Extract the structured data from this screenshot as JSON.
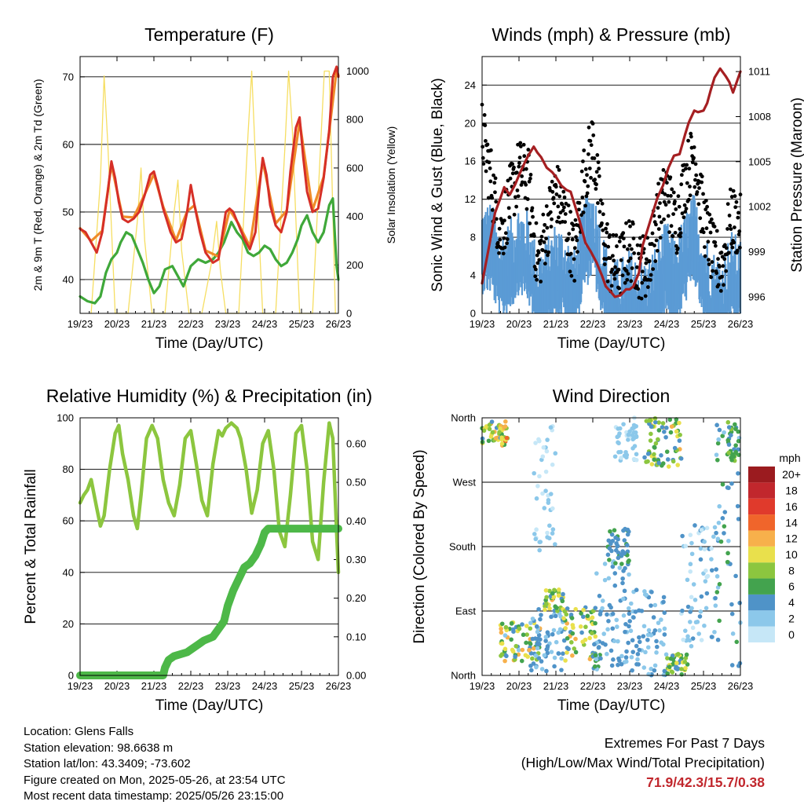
{
  "colors": {
    "temp_2m": "#d62f27",
    "temp_9m": "#f08c2a",
    "dewpoint": "#3fa83a",
    "solar": "#f6dc5a",
    "wind": "#5b9bd5",
    "gust": "#000000",
    "pressure": "#a51f22",
    "rh": "#8cc63f",
    "precip": "#4db848",
    "extremes_value": "#c1272d"
  },
  "time_ticks": [
    "19/23",
    "20/23",
    "21/23",
    "22/23",
    "23/23",
    "24/23",
    "25/23",
    "26/23"
  ],
  "chart_data": [
    {
      "id": "temperature",
      "type": "line",
      "title": "Temperature (F)",
      "xlabel": "Time (Day/UTC)",
      "ylabel": "2m & 9m T (Red, Orange) & 2m Td (Green)",
      "y2label": "Solar Insolation (Yellow)",
      "ylim": [
        35,
        73
      ],
      "y2lim": [
        0,
        1060
      ],
      "yticks": [
        40,
        50,
        60,
        70
      ],
      "y2ticks": [
        0,
        200,
        400,
        600,
        800,
        1000
      ],
      "xlim": [
        0,
        7
      ],
      "grid": true,
      "series": [
        {
          "name": "2m T",
          "color": "#d62f27",
          "x": [
            0,
            0.15,
            0.3,
            0.45,
            0.6,
            0.75,
            0.85,
            0.95,
            1.05,
            1.15,
            1.3,
            1.45,
            1.6,
            1.75,
            1.9,
            2.0,
            2.1,
            2.25,
            2.45,
            2.6,
            2.75,
            2.9,
            3.0,
            3.1,
            3.25,
            3.4,
            3.6,
            3.75,
            3.85,
            3.95,
            4.05,
            4.15,
            4.3,
            4.45,
            4.6,
            4.75,
            4.85,
            4.95,
            5.05,
            5.15,
            5.3,
            5.45,
            5.6,
            5.7,
            5.85,
            5.95,
            6.05,
            6.15,
            6.3,
            6.45,
            6.6,
            6.75,
            6.85,
            6.95,
            7.0
          ],
          "y": [
            47.5,
            47.0,
            45.5,
            44.0,
            47.0,
            53.0,
            57.5,
            55.0,
            51.5,
            49.0,
            48.5,
            49.0,
            50.0,
            52.5,
            55.5,
            56.0,
            54.0,
            50.5,
            47.0,
            45.5,
            46.0,
            50.0,
            54.0,
            51.0,
            47.0,
            44.0,
            42.5,
            43.0,
            46.5,
            50.0,
            50.5,
            50.0,
            48.0,
            46.0,
            44.5,
            47.0,
            53.0,
            58.0,
            55.5,
            51.0,
            48.0,
            47.0,
            50.0,
            56.0,
            62.5,
            64.0,
            58.0,
            53.0,
            50.0,
            50.5,
            55.0,
            62.0,
            70.0,
            71.5,
            70.0
          ]
        },
        {
          "name": "9m T",
          "color": "#f08c2a",
          "x": [
            0,
            0.3,
            0.6,
            0.85,
            1.15,
            1.45,
            1.75,
            2.0,
            2.25,
            2.6,
            2.9,
            3.1,
            3.4,
            3.75,
            4.05,
            4.3,
            4.6,
            4.95,
            5.3,
            5.6,
            5.95,
            6.3,
            6.6,
            6.95,
            7.0
          ],
          "y": [
            47.6,
            45.7,
            47.2,
            57.0,
            49.3,
            49.2,
            52.6,
            55.6,
            50.8,
            45.8,
            50.1,
            51.0,
            44.3,
            43.4,
            50.3,
            48.2,
            44.9,
            57.5,
            48.3,
            50.2,
            63.4,
            50.3,
            55.2,
            71.0,
            70.2
          ]
        },
        {
          "name": "2m Td",
          "color": "#3fa83a",
          "x": [
            0,
            0.2,
            0.4,
            0.55,
            0.7,
            0.85,
            1.0,
            1.1,
            1.25,
            1.4,
            1.55,
            1.7,
            1.85,
            2.0,
            2.15,
            2.3,
            2.5,
            2.65,
            2.8,
            3.0,
            3.2,
            3.4,
            3.6,
            3.75,
            3.9,
            4.0,
            4.1,
            4.25,
            4.4,
            4.55,
            4.7,
            4.85,
            5.0,
            5.15,
            5.3,
            5.45,
            5.6,
            5.75,
            5.9,
            6.0,
            6.15,
            6.3,
            6.45,
            6.6,
            6.75,
            6.85,
            6.95,
            7.0
          ],
          "y": [
            37.5,
            36.8,
            36.5,
            37.5,
            41.0,
            43.0,
            44.0,
            45.5,
            47.0,
            46.5,
            44.5,
            42.5,
            40.0,
            38.0,
            39.0,
            41.5,
            42.0,
            40.5,
            39.0,
            42.0,
            43.0,
            42.5,
            43.0,
            44.0,
            45.5,
            47.0,
            48.5,
            47.0,
            46.0,
            44.0,
            43.5,
            44.0,
            45.0,
            44.5,
            43.0,
            42.0,
            42.5,
            44.0,
            46.0,
            48.0,
            49.5,
            47.0,
            45.5,
            47.0,
            51.0,
            52.0,
            42.0,
            40.0
          ]
        },
        {
          "name": "Solar Insolation",
          "color": "#f6dc5a",
          "x": [
            0.3,
            0.55,
            0.65,
            0.75,
            0.95,
            1.3,
            1.55,
            1.65,
            1.75,
            1.95,
            2.3,
            2.55,
            2.65,
            2.75,
            2.95,
            3.3,
            3.55,
            3.7,
            3.8,
            3.95,
            4.3,
            4.55,
            4.65,
            4.75,
            4.95,
            5.3,
            5.55,
            5.65,
            5.75,
            5.95,
            6.3,
            6.5,
            6.62,
            6.75,
            6.92
          ],
          "y": [
            0,
            550,
            980,
            700,
            0,
            0,
            380,
            600,
            300,
            0,
            0,
            420,
            550,
            260,
            0,
            0,
            200,
            380,
            180,
            0,
            0,
            740,
            1000,
            640,
            0,
            0,
            680,
            1000,
            760,
            0,
            0,
            640,
            1000,
            1000,
            0
          ]
        }
      ]
    },
    {
      "id": "winds",
      "type": "line",
      "title": "Winds (mph) & Pressure (mb)",
      "xlabel": "Time (Day/UTC)",
      "ylabel": "Sonic Wind & Gust (Blue, Black)",
      "y2label": "Station Pressure (Maroon)",
      "ylim": [
        0,
        27
      ],
      "y2lim": [
        994.9,
        1012.0
      ],
      "yticks": [
        0,
        4,
        8,
        12,
        16,
        20,
        24
      ],
      "y2ticks": [
        996,
        999,
        1002,
        1005,
        1008,
        1011
      ],
      "xlim": [
        0,
        7
      ],
      "grid": true,
      "series": [
        {
          "name": "Sonic Wind",
          "color": "#5b9bd5",
          "x": [
            0,
            0.25,
            0.5,
            0.75,
            1.0,
            1.25,
            1.5,
            1.75,
            2.0,
            2.25,
            2.5,
            2.75,
            3.0,
            3.25,
            3.5,
            3.75,
            4.0,
            4.25,
            4.5,
            4.75,
            5.0,
            5.25,
            5.5,
            5.75,
            6.0,
            6.25,
            6.5,
            6.75,
            7.0
          ],
          "y": [
            8,
            8,
            5,
            6,
            8,
            7,
            3,
            4,
            6,
            5,
            3,
            8,
            10,
            5,
            2,
            2,
            3,
            2,
            2,
            4,
            6,
            4,
            7,
            9,
            5,
            3,
            2,
            5,
            4
          ]
        },
        {
          "name": "Gust",
          "color": "#000000",
          "x": [
            0,
            0.25,
            0.5,
            0.75,
            1.0,
            1.25,
            1.5,
            1.75,
            2.0,
            2.25,
            2.5,
            2.75,
            3.0,
            3.25,
            3.5,
            3.75,
            4.0,
            4.25,
            4.5,
            4.75,
            5.0,
            5.25,
            5.5,
            5.75,
            6.0,
            6.25,
            6.5,
            6.75,
            7.0
          ],
          "y": [
            19,
            14,
            8,
            12,
            15,
            14,
            5,
            9,
            13,
            10,
            6,
            14,
            18,
            9,
            5,
            5,
            7,
            5,
            5,
            10,
            13,
            9,
            14,
            17,
            10,
            6,
            5,
            10,
            9
          ]
        },
        {
          "name": "Station Pressure",
          "color": "#a51f22",
          "x": [
            0,
            0.2,
            0.35,
            0.5,
            0.6,
            0.75,
            0.9,
            1.0,
            1.15,
            1.25,
            1.4,
            1.5,
            1.6,
            1.75,
            1.9,
            2.0,
            2.15,
            2.3,
            2.4,
            2.5,
            2.65,
            2.8,
            2.95,
            3.1,
            3.25,
            3.35,
            3.5,
            3.6,
            3.75,
            3.9,
            4.0,
            4.1,
            4.25,
            4.35,
            4.5,
            4.6,
            4.75,
            4.9,
            5.05,
            5.2,
            5.35,
            5.5,
            5.6,
            5.75,
            5.85,
            6.0,
            6.1,
            6.2,
            6.3,
            6.45,
            6.6,
            6.7,
            6.8,
            6.9,
            7.0
          ],
          "y": [
            996.9,
            999.5,
            1001.6,
            1002.6,
            1003.3,
            1002.8,
            1003.5,
            1004.1,
            1004.9,
            1005.4,
            1006.0,
            1005.6,
            1005.3,
            1004.6,
            1004.3,
            1004.0,
            1003.4,
            1003.1,
            1003.0,
            1002.2,
            1001.0,
            999.6,
            999.0,
            998.3,
            997.4,
            996.7,
            996.3,
            996.0,
            996.1,
            996.5,
            996.5,
            996.7,
            997.6,
            999.4,
            1000.6,
            1001.4,
            1002.6,
            1003.4,
            1004.6,
            1005.4,
            1005.5,
            1006.8,
            1007.6,
            1008.4,
            1008.3,
            1008.4,
            1008.9,
            1009.8,
            1010.6,
            1011.2,
            1010.7,
            1010.3,
            1009.6,
            1010.3,
            1011.0
          ]
        }
      ]
    },
    {
      "id": "humidity",
      "type": "line",
      "title": "Relative Humidity (%) & Precipitation (in)",
      "xlabel": "Time (Day/UTC)",
      "ylabel": "Percent & Total Rainfall",
      "ylim": [
        0,
        100
      ],
      "y2lim": [
        0,
        0.667
      ],
      "yticks": [
        0,
        20,
        40,
        60,
        80,
        100
      ],
      "y2ticks": [
        0.0,
        0.1,
        0.2,
        0.3,
        0.4,
        0.5,
        0.6
      ],
      "xlim": [
        0,
        7
      ],
      "grid": true,
      "series": [
        {
          "name": "Relative Humidity",
          "color": "#8cc63f",
          "x": [
            0,
            0.1,
            0.2,
            0.3,
            0.45,
            0.55,
            0.65,
            0.8,
            0.95,
            1.05,
            1.15,
            1.3,
            1.45,
            1.55,
            1.65,
            1.8,
            1.95,
            2.1,
            2.25,
            2.4,
            2.55,
            2.7,
            2.85,
            3.0,
            3.15,
            3.3,
            3.45,
            3.6,
            3.75,
            3.85,
            3.95,
            4.1,
            4.25,
            4.35,
            4.5,
            4.65,
            4.8,
            4.95,
            5.1,
            5.25,
            5.4,
            5.55,
            5.7,
            5.85,
            6.0,
            6.15,
            6.3,
            6.45,
            6.6,
            6.75,
            6.85,
            6.95,
            7.0
          ],
          "y": [
            67,
            70,
            72,
            76,
            65,
            58,
            62,
            80,
            94,
            97,
            86,
            76,
            62,
            57,
            70,
            92,
            97,
            92,
            76,
            67,
            62,
            74,
            92,
            95,
            82,
            68,
            62,
            82,
            95,
            93,
            96,
            98,
            96,
            92,
            80,
            63,
            72,
            90,
            95,
            80,
            56,
            50,
            70,
            94,
            97,
            80,
            52,
            45,
            75,
            98,
            92,
            56,
            40
          ]
        },
        {
          "name": "Total Precipitation",
          "color": "#4db848",
          "x": [
            0,
            2.25,
            2.3,
            2.4,
            2.55,
            2.9,
            3.05,
            3.2,
            3.35,
            3.6,
            3.9,
            4.0,
            4.15,
            4.3,
            4.45,
            4.6,
            4.75,
            4.9,
            5.0,
            5.1,
            7.0
          ],
          "y": [
            0.0,
            0.0,
            0.02,
            0.04,
            0.05,
            0.06,
            0.07,
            0.08,
            0.09,
            0.1,
            0.14,
            0.18,
            0.22,
            0.25,
            0.28,
            0.29,
            0.31,
            0.34,
            0.37,
            0.38,
            0.38
          ]
        }
      ]
    },
    {
      "id": "wind_direction",
      "type": "scatter",
      "title": "Wind Direction",
      "xlabel": "Time (Day/UTC)",
      "ylabel": "Direction (Colored By Speed)",
      "yticks": [
        "North",
        "East",
        "South",
        "West",
        "North"
      ],
      "ylim": [
        0,
        360
      ],
      "xlim": [
        0,
        7
      ],
      "grid": true,
      "colorbar": {
        "unit": "mph",
        "labels": [
          "0",
          "2",
          "4",
          "6",
          "8",
          "10",
          "12",
          "14",
          "16",
          "18",
          "20+"
        ],
        "colors": [
          "#c6e7f7",
          "#8cc8ea",
          "#4f93c8",
          "#43a34e",
          "#8cc63f",
          "#e9e04c",
          "#f7b04b",
          "#f0652b",
          "#e03a2c",
          "#c1272d",
          "#9b1b1f"
        ]
      },
      "clusters": [
        {
          "x0": 0.0,
          "x1": 0.7,
          "dir0": 320,
          "dir1": 355,
          "spd0": 4,
          "spd1": 14
        },
        {
          "x0": 0.5,
          "x1": 1.6,
          "dir0": 20,
          "dir1": 75,
          "spd0": 2,
          "spd1": 12
        },
        {
          "x0": 1.3,
          "x1": 2.2,
          "dir0": 5,
          "dir1": 100,
          "spd0": 1,
          "spd1": 5
        },
        {
          "x0": 1.4,
          "x1": 2.0,
          "dir0": 170,
          "dir1": 350,
          "spd0": 0,
          "spd1": 2
        },
        {
          "x0": 1.7,
          "x1": 2.2,
          "dir0": 90,
          "dir1": 120,
          "spd0": 4,
          "spd1": 12
        },
        {
          "x0": 2.2,
          "x1": 3.1,
          "dir0": 20,
          "dir1": 95,
          "spd0": 3,
          "spd1": 12
        },
        {
          "x0": 3.0,
          "x1": 3.2,
          "dir0": 5,
          "dir1": 50,
          "spd0": 2,
          "spd1": 6
        },
        {
          "x0": 3.1,
          "x1": 4.0,
          "dir0": 10,
          "dir1": 160,
          "spd0": 1,
          "spd1": 5
        },
        {
          "x0": 3.4,
          "x1": 4.0,
          "dir0": 155,
          "dir1": 205,
          "spd0": 3,
          "spd1": 6
        },
        {
          "x0": 3.6,
          "x1": 4.2,
          "dir0": 300,
          "dir1": 360,
          "spd0": 0,
          "spd1": 3
        },
        {
          "x0": 4.0,
          "x1": 5.0,
          "dir0": 0,
          "dir1": 120,
          "spd0": 1,
          "spd1": 5
        },
        {
          "x0": 4.4,
          "x1": 5.4,
          "dir0": 290,
          "dir1": 360,
          "spd0": 3,
          "spd1": 12
        },
        {
          "x0": 5.0,
          "x1": 5.6,
          "dir0": 0,
          "dir1": 30,
          "spd0": 4,
          "spd1": 10
        },
        {
          "x0": 5.4,
          "x1": 6.4,
          "dir0": 40,
          "dir1": 210,
          "spd0": 0,
          "spd1": 4
        },
        {
          "x0": 6.3,
          "x1": 7.0,
          "dir0": 0,
          "dir1": 360,
          "spd0": 2,
          "spd1": 6
        },
        {
          "x0": 6.6,
          "x1": 7.0,
          "dir0": 300,
          "dir1": 355,
          "spd0": 4,
          "spd1": 8
        }
      ]
    }
  ],
  "info": {
    "location": "Location: Glens Falls",
    "elevation": "Station elevation: 98.6638 m",
    "latlon": "Station lat/lon: 43.3409; -73.602",
    "created": "Figure created on Mon, 2025-05-26, at 23:54 UTC",
    "recent": "Most recent data timestamp: 2025/05/26 23:15:00"
  },
  "extremes": {
    "title": "Extremes For Past 7 Days",
    "subtitle": "(High/Low/Max Wind/Total Precipitation)",
    "values": "71.9/42.3/15.7/0.38"
  }
}
